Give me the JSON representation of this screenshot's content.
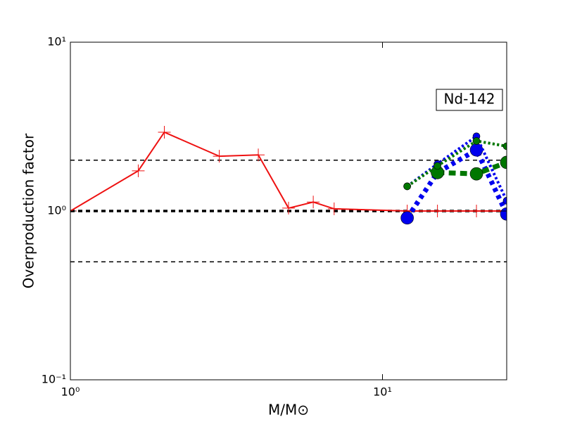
{
  "chart_data": {
    "type": "line",
    "xlabel": "M/M⊙",
    "ylabel": "Overproduction factor",
    "annotation": "Nd-142",
    "xscale": "log",
    "yscale": "log",
    "xlim": [
      1,
      25
    ],
    "ylim": [
      0.1,
      10
    ],
    "xticks": [
      {
        "value": 1,
        "label": "10⁰"
      },
      {
        "value": 10,
        "label": "10¹"
      }
    ],
    "yticks": [
      {
        "value": 0.1,
        "label": "10⁻¹"
      },
      {
        "value": 1,
        "label": "10⁰"
      },
      {
        "value": 10,
        "label": "10¹"
      }
    ],
    "hlines": [
      {
        "value": 2,
        "width": 1.5
      },
      {
        "value": 1,
        "width": 3.5
      },
      {
        "value": 0.5,
        "width": 1.5
      }
    ],
    "series": [
      {
        "color": "#ee1111",
        "style": "solid",
        "width": 2,
        "marker": "+",
        "marker_size": 9,
        "x": [
          1,
          1.65,
          2,
          3,
          4,
          5,
          6,
          7,
          12,
          15,
          20,
          25
        ],
        "values": [
          1.0,
          1.73,
          2.93,
          2.11,
          2.15,
          1.04,
          1.13,
          1.03,
          1.0,
          1.0,
          1.0,
          1.0
        ]
      },
      {
        "color": "#0000ee",
        "style": "dotted",
        "width": 7,
        "marker": "o",
        "marker_size": 9,
        "x": [
          12,
          15,
          20,
          25
        ],
        "values": [
          0.91,
          1.69,
          2.3,
          0.96
        ]
      },
      {
        "color": "#0000ee",
        "style": "dotted",
        "width": 4,
        "marker": "o",
        "marker_size": 5,
        "x": [
          12,
          15,
          20,
          25
        ],
        "values": [
          1.4,
          1.9,
          2.77,
          1.15
        ]
      },
      {
        "color": "#007700",
        "style": "dashed",
        "width": 7,
        "marker": "o",
        "marker_size": 9,
        "x": [
          15,
          20,
          25
        ],
        "values": [
          1.69,
          1.66,
          1.94
        ]
      },
      {
        "color": "#007700",
        "style": "dotted",
        "width": 4,
        "marker": "o",
        "marker_size": 5,
        "x": [
          12,
          15,
          20,
          25
        ],
        "values": [
          1.4,
          1.85,
          2.6,
          2.42
        ]
      }
    ]
  }
}
